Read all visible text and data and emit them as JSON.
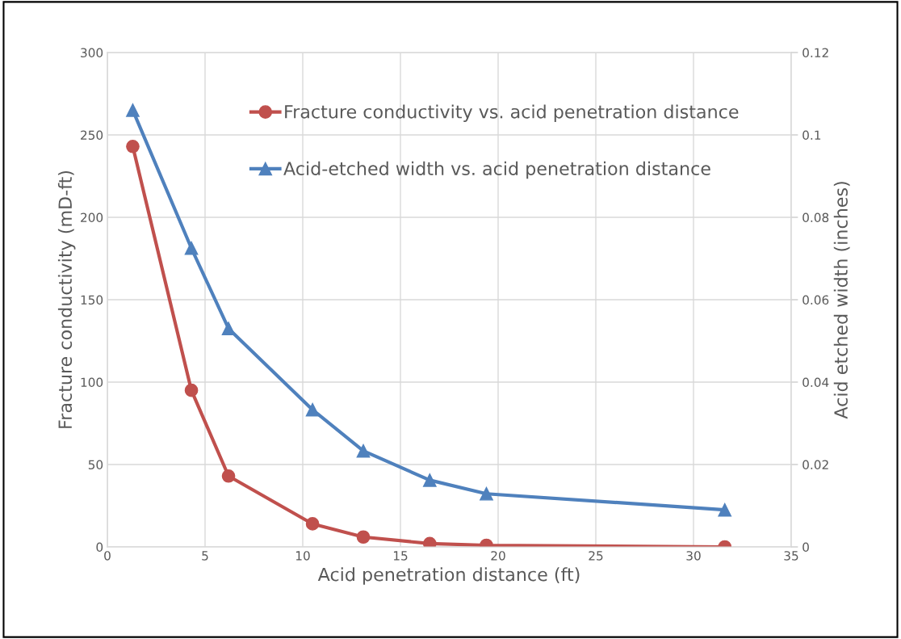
{
  "chart_data": {
    "type": "line",
    "xlabel": "Acid penetration distance (ft)",
    "ylabel": "Fracture conductivity (mD-ft)",
    "y2label": "Acid etched width (inches)",
    "xlim": [
      0,
      35
    ],
    "xticks": [
      0,
      5,
      10,
      15,
      20,
      25,
      30,
      35
    ],
    "ylim": [
      0,
      300
    ],
    "yticks": [
      0,
      50,
      100,
      150,
      200,
      250,
      300
    ],
    "y2lim": [
      0,
      0.12
    ],
    "y2ticks": [
      0,
      0.02,
      0.04,
      0.06,
      0.08,
      0.1,
      0.12
    ],
    "grid": true,
    "legend": "top right",
    "series": [
      {
        "name": "Fracture conductivity vs. acid penetration distance",
        "color": "#c0504d",
        "marker": "circle",
        "x": [
          1.3,
          4.3,
          6.2,
          10.5,
          13.1,
          16.5,
          19.4,
          31.6
        ],
        "values": [
          243,
          95,
          43,
          14,
          6,
          2,
          1,
          0
        ]
      },
      {
        "name": "Acid-etched width vs. acid penetration distance",
        "color": "#4f81bd",
        "marker": "triangle",
        "axis": "y2",
        "x": [
          1.3,
          4.3,
          6.2,
          10.5,
          13.1,
          16.5,
          19.4,
          31.6
        ],
        "values": [
          0.106,
          0.0725,
          0.053,
          0.0333,
          0.0233,
          0.0162,
          0.0129,
          0.009
        ]
      }
    ]
  }
}
